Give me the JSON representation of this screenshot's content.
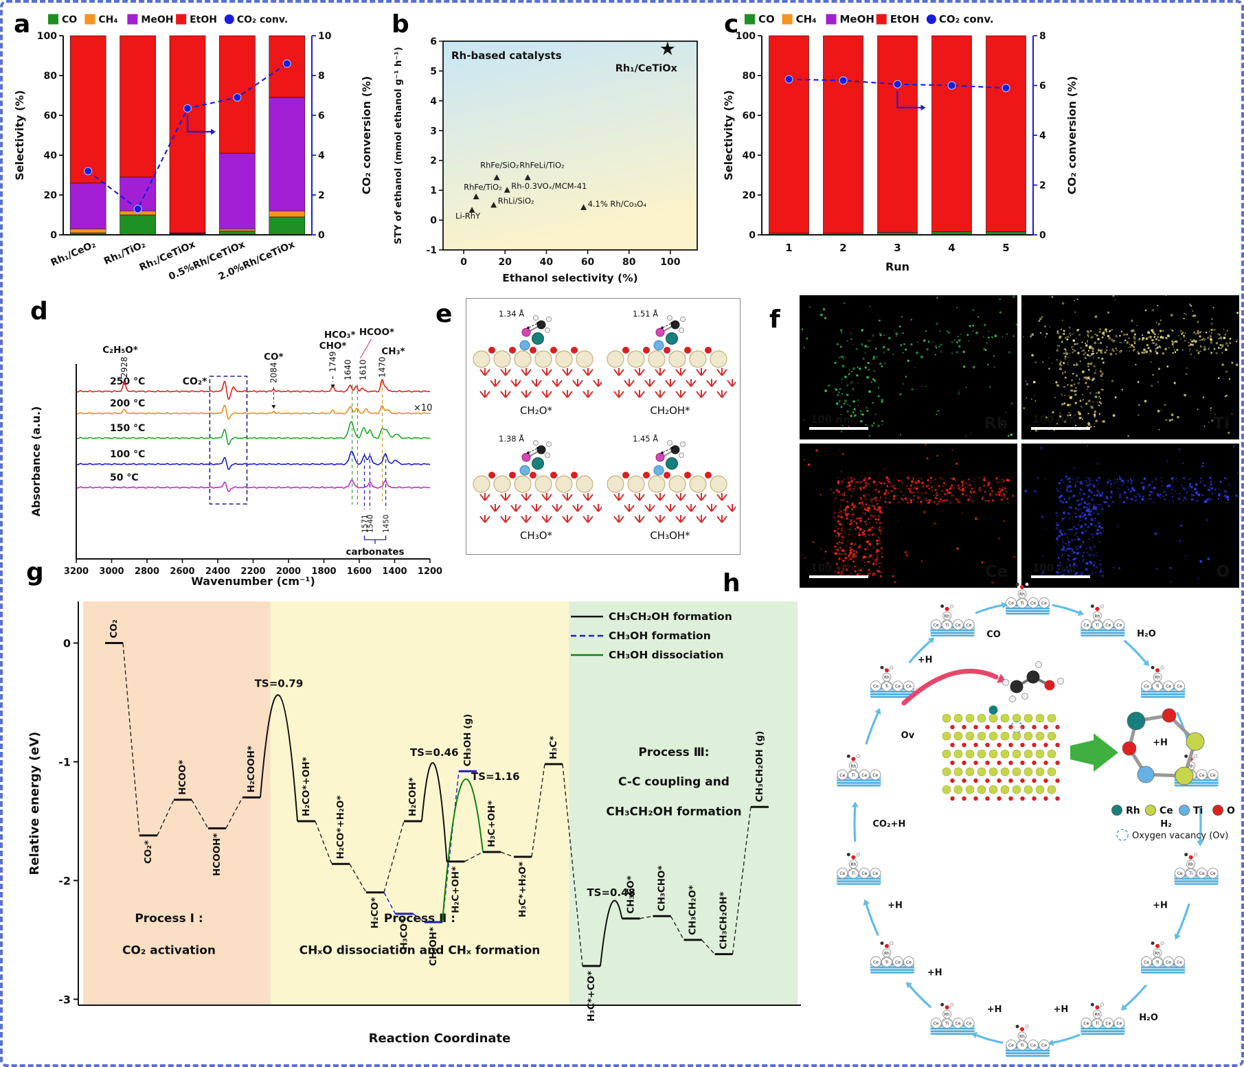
{
  "panels": {
    "a": "a",
    "b": "b",
    "c": "c",
    "d": "d",
    "e": "e",
    "f": "f",
    "g": "g",
    "h": "h"
  },
  "legend_selectivity": {
    "items": [
      {
        "label": "CO",
        "color": "#1f9023",
        "type": "box"
      },
      {
        "label": "CH₄",
        "color": "#f5941f",
        "type": "box"
      },
      {
        "label": "MeOH",
        "color": "#a21fd6",
        "type": "box"
      },
      {
        "label": "EtOH",
        "color": "#ee1616",
        "type": "box"
      },
      {
        "label": "CO₂ conv.",
        "color": "#1b1be0",
        "type": "dot"
      }
    ]
  },
  "chart_data": [
    {
      "panel": "a",
      "type": "bar",
      "title": "",
      "ylabel": "Selectivity (%)",
      "y2label": "CO₂ conversion (%)",
      "categories": [
        "Rh₁/CeO₂",
        "Rh₁/TiO₂",
        "Rh₁/CeTiOx",
        "0.5%Rh/CeTiOx",
        "2.0%Rh/CeTiOx"
      ],
      "series": [
        {
          "name": "CO",
          "values": [
            1,
            10,
            0.4,
            2,
            9
          ]
        },
        {
          "name": "CH₄",
          "values": [
            2,
            2,
            0.3,
            1,
            3
          ]
        },
        {
          "name": "MeOH",
          "values": [
            23,
            17,
            0.3,
            38,
            57
          ]
        },
        {
          "name": "EtOH",
          "values": [
            74,
            71,
            99,
            59,
            31
          ]
        }
      ],
      "conv": [
        3.2,
        1.3,
        6.35,
        6.9,
        8.6
      ],
      "ylim": [
        0,
        100
      ],
      "y2lim": [
        0,
        10
      ],
      "yticks": [
        0,
        20,
        40,
        60,
        80,
        100
      ],
      "y2ticks": [
        0,
        2,
        4,
        6,
        8,
        10
      ],
      "y2max": 10
    },
    {
      "panel": "b",
      "type": "scatter",
      "title": "Rh-based catalysts",
      "ylabel": "STY of ethanol (mmol ethanol g⁻¹ h⁻¹)",
      "xlabel": "Ethanol selectivity (%)",
      "xticks": [
        0,
        20,
        40,
        60,
        80,
        100
      ],
      "yticks": [
        -1,
        0,
        1,
        2,
        3,
        4,
        5,
        6
      ],
      "xlim": [
        -10,
        113
      ],
      "ylim": [
        -1,
        6
      ],
      "points": [
        {
          "label": "RhFe/SiO₂",
          "x": 16,
          "y": 1.42,
          "lx": 8,
          "ly": 1.75
        },
        {
          "label": "RhFeLi/TiO₂",
          "x": 31,
          "y": 1.42,
          "lx": 27,
          "ly": 1.75
        },
        {
          "label": "RhFe/TiO₂",
          "x": 6,
          "y": 0.78,
          "lx": 0,
          "ly": 1.02
        },
        {
          "label": "Rh-0.3VOₓ/MCM-41",
          "x": 21,
          "y": 1.0,
          "lx": 23,
          "ly": 1.05
        },
        {
          "label": "RhLi/SiO₂",
          "x": 14.5,
          "y": 0.5,
          "lx": 16.5,
          "ly": 0.55
        },
        {
          "label": "Li-RhY",
          "x": 4,
          "y": 0.33,
          "lx": -4,
          "ly": 0.05
        },
        {
          "label": "4.1% Rh/Co₃O₄",
          "x": 58,
          "y": 0.42,
          "lx": 60,
          "ly": 0.45
        }
      ],
      "star": {
        "label": "Rh₁/CeTiOx",
        "x": 100,
        "y": 5.75,
        "color": "#e81111"
      }
    },
    {
      "panel": "c",
      "type": "bar",
      "ylabel": "Selectivity (%)",
      "y2label": "CO₂ conversion (%)",
      "xlabel": "Run",
      "categories": [
        "1",
        "2",
        "3",
        "4",
        "5"
      ],
      "series": [
        {
          "name": "CO",
          "values": [
            0.8,
            0.8,
            1.2,
            1.5,
            1.5
          ]
        },
        {
          "name": "EtOH",
          "values": [
            99.2,
            99.2,
            98.8,
            98.5,
            98.5
          ]
        }
      ],
      "conv": [
        6.25,
        6.2,
        6.05,
        6.0,
        5.9
      ],
      "ylim": [
        0,
        100
      ],
      "y2lim": [
        0,
        8
      ],
      "yticks": [
        0,
        20,
        40,
        60,
        80,
        100
      ],
      "y2ticks": [
        0,
        2,
        4,
        6,
        8
      ],
      "y2max": 8
    },
    {
      "panel": "d",
      "type": "line",
      "ylabel": "Absorbance (a.u.)",
      "xlabel": "Wavenumber (cm⁻¹)",
      "xticks": [
        3200,
        3000,
        2800,
        2600,
        2400,
        2200,
        2000,
        1800,
        1600,
        1400,
        1200
      ],
      "xlim": [
        3200,
        1200
      ],
      "curves": [
        {
          "temp": "250 °C",
          "color": "#e02121",
          "base": 140,
          "peaks": [
            [
              2928,
              12,
              9
            ],
            [
              2362,
              15,
              8
            ],
            [
              2338,
              -12,
              8
            ],
            [
              2312,
              7,
              7
            ],
            [
              2084,
              3,
              6
            ],
            [
              1749,
              9,
              7
            ],
            [
              1652,
              9,
              9
            ],
            [
              1618,
              7,
              8
            ],
            [
              1583,
              5,
              8
            ],
            [
              1470,
              17,
              8
            ],
            [
              1448,
              6,
              8
            ]
          ]
        },
        {
          "temp": "200 °C",
          "color": "#f08c1e",
          "base": 172,
          "peaks": [
            [
              2928,
              5,
              9
            ],
            [
              2362,
              12,
              8
            ],
            [
              2338,
              -9,
              8
            ],
            [
              2084,
              3,
              6
            ],
            [
              1749,
              5,
              7
            ],
            [
              1650,
              10,
              10
            ],
            [
              1612,
              7,
              9
            ],
            [
              1560,
              6,
              10
            ],
            [
              1470,
              11,
              9
            ],
            [
              1440,
              6,
              9
            ]
          ]
        },
        {
          "temp": "150 °C",
          "color": "#22a822",
          "base": 208,
          "peaks": [
            [
              2362,
              13,
              8
            ],
            [
              2338,
              -10,
              8
            ],
            [
              1645,
              24,
              14
            ],
            [
              1575,
              15,
              11
            ],
            [
              1540,
              12,
              10
            ],
            [
              1470,
              13,
              10
            ],
            [
              1445,
              12,
              11
            ],
            [
              1390,
              6,
              13
            ]
          ]
        },
        {
          "temp": "100 °C",
          "color": "#1c1ccc",
          "base": 246,
          "peaks": [
            [
              2362,
              10,
              8
            ],
            [
              2338,
              -8,
              8
            ],
            [
              1642,
              19,
              13
            ],
            [
              1572,
              12,
              10
            ],
            [
              1540,
              12,
              10
            ],
            [
              1452,
              15,
              11
            ],
            [
              1395,
              6,
              12
            ]
          ]
        },
        {
          "temp": "50 °C",
          "color": "#c827c8",
          "base": 280,
          "peaks": [
            [
              2362,
              8,
              8
            ],
            [
              2338,
              -6,
              8
            ],
            [
              1642,
              11,
              11
            ],
            [
              1540,
              8,
              9
            ],
            [
              1452,
              10,
              10
            ]
          ]
        }
      ],
      "annotations": {
        "c2h5o": {
          "text": "C₂H₅O*",
          "num": "2928",
          "color": "#cc1414"
        },
        "co2": {
          "text": "CO₂*",
          "color": "#111111"
        },
        "co": {
          "text": "CO*",
          "num": "2084",
          "color": "#111111"
        },
        "cho": {
          "text": "CHO*",
          "num": "1749",
          "color": "#111111"
        },
        "hco3": {
          "text": "HCO₃*",
          "num": "1640",
          "color": "#1e8c1e"
        },
        "hcoo": {
          "text": "HCOO*",
          "num": "1610",
          "color": "#e0218a"
        },
        "ch3": {
          "text": "CH₃*",
          "num": "1470",
          "color": "#c09000"
        },
        "x10": {
          "text": "×10",
          "color": "#111111"
        },
        "carbonates": {
          "text": "carbonates",
          "nums": [
            "1571",
            "1540",
            "1450"
          ],
          "color": "#1c1cbe"
        }
      }
    },
    {
      "panel": "g",
      "type": "line",
      "ylabel": "Relative energy (eV)",
      "xlabel": "Reaction Coordinate",
      "yticks": [
        0,
        -1,
        -2,
        -3
      ],
      "ylim": [
        -3,
        0.35
      ],
      "legend": [
        {
          "label": "CH₃CH₂OH formation",
          "color": "#111111",
          "dash": ""
        },
        {
          "label": "CH₃OH formation",
          "color": "#1c1ccc",
          "dash": "8 5"
        },
        {
          "label": "CH₃OH dissociation",
          "color": "#0c840c",
          "dash": ""
        }
      ],
      "regions": [
        {
          "lines": [
            "Process Ⅰ :",
            "CO₂ activation"
          ],
          "x0": -0.9,
          "x1": 4.55,
          "color": "#fbdfc5",
          "tx": 1.6,
          "ty": [
            -2.35,
            -2.62
          ]
        },
        {
          "lines": [
            "Process Ⅱ :",
            "CHₓO dissociation and CHₓ formation"
          ],
          "x0": 4.55,
          "x1": 13.25,
          "color": "#fcf6cf",
          "tx": 8.9,
          "ty": [
            -2.35,
            -2.62
          ]
        },
        {
          "lines": [
            "Process Ⅲ:",
            "C-C coupling and",
            "CH₃CH₂OH formation"
          ],
          "x0": 13.25,
          "x1": 19.9,
          "color": "#dff0da",
          "tx": 16.3,
          "ty": [
            -0.95,
            -1.2,
            -1.45
          ]
        }
      ],
      "levels": [
        {
          "id": "CO2g",
          "x": 0,
          "E": 0,
          "label": "CO₂",
          "p": "above"
        },
        {
          "id": "CO2s",
          "x": 1,
          "E": -1.62,
          "label": "CO₂*",
          "p": "below"
        },
        {
          "id": "HCOO",
          "x": 2,
          "E": -1.32,
          "label": "HCOO*",
          "p": "above"
        },
        {
          "id": "HCOOH",
          "x": 3,
          "E": -1.56,
          "label": "HCOOH*",
          "p": "below"
        },
        {
          "id": "H2COOH",
          "x": 4,
          "E": -1.3,
          "label": "H₂COOH*",
          "p": "above"
        },
        {
          "id": "H2CO_OH",
          "x": 5.6,
          "E": -1.5,
          "label": "H₂CO*+OH*",
          "p": "above"
        },
        {
          "id": "H2CO_H2O",
          "x": 6.6,
          "E": -1.86,
          "label": "H₂CO*+H₂O*",
          "p": "above"
        },
        {
          "id": "H2CO",
          "x": 7.6,
          "E": -2.1,
          "label": "H₂CO*",
          "p": "below"
        },
        {
          "id": "H3CO",
          "x": 8.45,
          "E": -2.28,
          "label": "H₃CO*",
          "p": "below",
          "c": "b"
        },
        {
          "id": "CH3OHs",
          "x": 9.3,
          "E": -2.35,
          "label": "CH₃OH*",
          "p": "below",
          "c": "b"
        },
        {
          "id": "CH3OHg",
          "x": 10.3,
          "E": -1.08,
          "label": "CH₃OH (g)",
          "p": "above",
          "c": "b"
        },
        {
          "id": "H2COH",
          "x": 8.7,
          "E": -1.5,
          "label": "H₂COH*",
          "p": "above"
        },
        {
          "id": "H2C_OH",
          "x": 9.95,
          "E": -1.84,
          "label": "H₂C+OH*",
          "p": "below"
        },
        {
          "id": "H3C_OH",
          "x": 11.0,
          "E": -1.76,
          "label": "H₃C+OH*",
          "p": "above"
        },
        {
          "id": "H3C_H2O",
          "x": 11.9,
          "E": -1.8,
          "label": "H₃C*+H₂O*",
          "p": "below"
        },
        {
          "id": "H3C",
          "x": 12.8,
          "E": -1.02,
          "label": "H₃C*",
          "p": "above"
        },
        {
          "id": "H3C_CO",
          "x": 13.9,
          "E": -2.72,
          "label": "H₃C*+CO*",
          "p": "below"
        },
        {
          "id": "CH3CO",
          "x": 15.05,
          "E": -2.32,
          "label": "CH₃CO*",
          "p": "above"
        },
        {
          "id": "CH3CHO",
          "x": 15.95,
          "E": -2.3,
          "label": "CH₃CHO*",
          "p": "above"
        },
        {
          "id": "CH3CH2O",
          "x": 16.85,
          "E": -2.5,
          "label": "CH₃CH₂O*",
          "p": "above"
        },
        {
          "id": "CH3CH2OH",
          "x": 17.75,
          "E": -2.62,
          "label": "CH₃CH₂OH*",
          "p": "above"
        },
        {
          "id": "CH3CH2OHg",
          "x": 18.8,
          "E": -1.38,
          "label": "CH₃CH₂OH (g)",
          "p": "above"
        }
      ],
      "links": [
        [
          "CO2g",
          "CO2s",
          "k"
        ],
        [
          "CO2s",
          "HCOO",
          "k"
        ],
        [
          "HCOO",
          "HCOOH",
          "k"
        ],
        [
          "HCOOH",
          "H2COOH",
          "k"
        ],
        [
          "H2CO_OH",
          "H2CO_H2O",
          "k"
        ],
        [
          "H2CO_H2O",
          "H2CO",
          "k"
        ],
        [
          "H2CO",
          "H2COH",
          "k"
        ],
        [
          "H2CO",
          "H3CO",
          "b"
        ],
        [
          "H3CO",
          "CH3OHs",
          "b"
        ],
        [
          "CH3OHs",
          "CH3OHg",
          "b"
        ],
        [
          "H2C_OH",
          "H3C_OH",
          "k"
        ],
        [
          "H3C_OH",
          "H3C_H2O",
          "k"
        ],
        [
          "H3C_H2O",
          "H3C",
          "k"
        ],
        [
          "H3C",
          "H3C_CO",
          "k"
        ],
        [
          "CH3CO",
          "CH3CHO",
          "k"
        ],
        [
          "CH3CHO",
          "CH3CH2O",
          "k"
        ],
        [
          "CH3CH2O",
          "CH3CH2OH",
          "k"
        ],
        [
          "CH3CH2OH",
          "CH3CH2OHg",
          "k"
        ]
      ],
      "ts": [
        {
          "a": "H2COOH",
          "b": "H2CO_OH",
          "peak": -0.44,
          "label": "TS=0.79",
          "lc": "#cc1111",
          "sc": "#111111"
        },
        {
          "a": "H2COH",
          "b": "H2C_OH",
          "peak": -1.02,
          "label": "TS=0.46",
          "lc": "#cc1111",
          "sc": "#111111"
        },
        {
          "a": "CH3OHs",
          "b": "H3C_OH",
          "peak": -1.17,
          "label": "TS=1.16",
          "lc": "#0c840c",
          "sc": "#0c840c",
          "lx": 660,
          "ly": 302,
          "anchor": "start"
        },
        {
          "a": "H3C_CO",
          "b": "CH3CO",
          "peak": -2.2,
          "label": "TS=0.48",
          "lc": "#cc1111",
          "sc": "#111111"
        }
      ]
    }
  ],
  "panel_e": {
    "structures": [
      {
        "label": "CH₂O*",
        "bond": "1.34 Å"
      },
      {
        "label": "CH₂OH*",
        "bond": "1.51 Å"
      },
      {
        "label": "CH₃O*",
        "bond": "1.38 Å"
      },
      {
        "label": "CH₃OH*",
        "bond": "1.45 Å"
      }
    ]
  },
  "panel_f": {
    "maps": [
      {
        "element": "Rh",
        "color": "#3fc45f",
        "scale": "100 nm",
        "arm": 0.2,
        "bar": 0.26,
        "noise": 0.035,
        "seed": 11
      },
      {
        "element": "Ti",
        "color": "#ddd27e",
        "scale": "100 nm",
        "arm": 0.8,
        "bar": 0.5,
        "noise": 0.05,
        "seed": 22
      },
      {
        "element": "Ce",
        "color": "#f3271a",
        "scale": "100 nm",
        "arm": 0.85,
        "bar": 0.95,
        "noise": 0.02,
        "seed": 33
      },
      {
        "element": "O",
        "color": "#2f3cf0",
        "scale": "100 nm",
        "arm": 0.7,
        "bar": 0.8,
        "noise": 0.02,
        "seed": 44
      }
    ]
  },
  "panel_h": {
    "site_labels": [
      "Ce",
      "Ti",
      "Ce",
      "Ce"
    ],
    "cycle_labels": [
      {
        "text": "CO",
        "angle": 102.9,
        "rf": 0.88,
        "color": "#111111"
      },
      {
        "text": "H₂O",
        "angle": 51.4,
        "rf": 1.1,
        "color": "#111111"
      },
      {
        "text": "+H",
        "angle": 25.7,
        "rf": 0.85,
        "color": "#111111"
      },
      {
        "text": "H₂",
        "angle": 0,
        "rf": 0.8,
        "color": "#111111"
      },
      {
        "text": "+H",
        "angle": -25.7,
        "rf": 0.85,
        "color": "#111111"
      },
      {
        "text": "H₂O",
        "angle": -51.4,
        "rf": 1.12,
        "color": "#dd1111"
      },
      {
        "text": "+H",
        "angle": -77.1,
        "rf": 0.86,
        "color": "#111111"
      },
      {
        "text": "+H",
        "angle": -102.9,
        "rf": 0.86,
        "color": "#111111"
      },
      {
        "text": "+H",
        "angle": -128.6,
        "rf": 0.86,
        "color": "#111111"
      },
      {
        "text": "+H",
        "angle": -154.3,
        "rf": 0.85,
        "color": "#111111"
      },
      {
        "text": "CO₂+H",
        "angle": 180,
        "rf": 0.8,
        "color": "#111111"
      },
      {
        "text": "Ov",
        "angle": 150,
        "rf": 0.8,
        "color": "#111111"
      },
      {
        "text": "+H",
        "angle": 128.6,
        "rf": 0.95,
        "color": "#111111"
      }
    ],
    "legend": [
      {
        "label": "Rh",
        "color": "#17807a"
      },
      {
        "label": "Ce",
        "color": "#c6d64b"
      },
      {
        "label": "Ti",
        "color": "#66b2e4"
      },
      {
        "label": "O",
        "color": "#e02020"
      }
    ],
    "vacancy": "Oxygen vacancy (Ov)"
  }
}
